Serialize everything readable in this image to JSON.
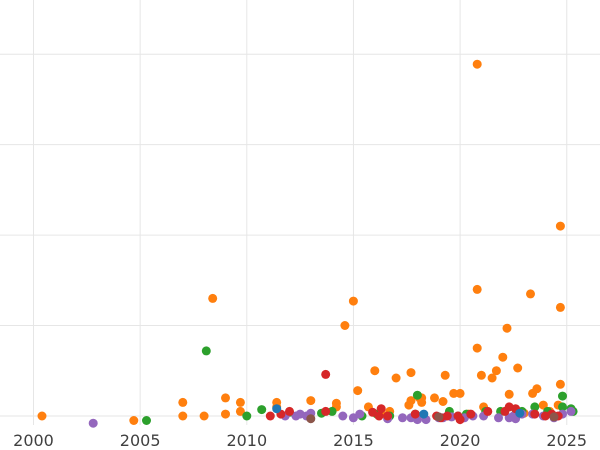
{
  "chart_data": {
    "type": "scatter",
    "title": "",
    "xlabel": "",
    "ylabel": "",
    "xlim": [
      2000,
      2026
    ],
    "ylim": [
      0,
      4.7
    ],
    "xticks": [
      2000,
      2005,
      2010,
      2015,
      2020,
      2025
    ],
    "xtick_labels": [
      "2000",
      "2005",
      "2010",
      "2015",
      "2020",
      "2025"
    ],
    "yticks": [
      0.1,
      1.1,
      2.1,
      3.1,
      4.1
    ],
    "grid": true,
    "legend": "none",
    "series": [
      {
        "color": "#ff7f0e",
        "x": [
          2000.4,
          2004.7,
          2007.0,
          2007.0,
          2008.0,
          2008.4,
          2009.0,
          2009.0,
          2009.7,
          2009.7,
          2011.4,
          2011.4,
          2013.0,
          2014.2,
          2014.2,
          2014.6,
          2015.0,
          2015.2,
          2015.7,
          2016.0,
          2016.3,
          2016.7,
          2017.0,
          2017.6,
          2017.7,
          2017.7,
          2018.1,
          2018.2,
          2018.2,
          2018.8,
          2019.2,
          2019.3,
          2019.7,
          2020.0,
          2020.4,
          2020.8,
          2020.8,
          2020.8,
          2021.0,
          2021.1,
          2021.5,
          2021.7,
          2022.0,
          2022.2,
          2022.3,
          2022.7,
          2023.0,
          2023.3,
          2023.4,
          2023.6,
          2023.9,
          2024.2,
          2024.6,
          2024.7,
          2024.7,
          2024.7
        ],
        "y": [
          0.1,
          0.05,
          0.25,
          0.1,
          0.1,
          1.4,
          0.3,
          0.12,
          0.15,
          0.25,
          0.25,
          0.2,
          0.27,
          0.2,
          0.24,
          1.1,
          1.37,
          0.38,
          0.2,
          0.6,
          0.12,
          0.15,
          0.52,
          0.22,
          0.27,
          0.58,
          0.3,
          0.25,
          0.3,
          0.3,
          0.26,
          0.55,
          0.35,
          0.35,
          0.12,
          3.99,
          0.85,
          1.5,
          0.55,
          0.2,
          0.52,
          0.6,
          0.75,
          1.07,
          0.34,
          0.63,
          0.13,
          1.45,
          0.35,
          0.4,
          0.22,
          0.15,
          0.22,
          0.45,
          1.3,
          2.2
        ]
      },
      {
        "color": "#2ca02c",
        "x": [
          2005.3,
          2008.1,
          2010.0,
          2010.7,
          2012.0,
          2013.5,
          2014.0,
          2015.4,
          2016.1,
          2016.7,
          2017.9,
          2018.0,
          2019.5,
          2019.9,
          2020.3,
          2021.2,
          2021.9,
          2022.6,
          2022.9,
          2023.5,
          2024.1,
          2024.8,
          2024.8,
          2025.2,
          2025.3
        ],
        "y": [
          0.05,
          0.82,
          0.1,
          0.17,
          0.14,
          0.13,
          0.15,
          0.1,
          0.12,
          0.1,
          0.12,
          0.33,
          0.15,
          0.1,
          0.12,
          0.15,
          0.15,
          0.12,
          0.15,
          0.2,
          0.15,
          0.32,
          0.2,
          0.18,
          0.15
        ]
      },
      {
        "color": "#9467bd",
        "x": [
          2002.8,
          2011.8,
          2012.3,
          2012.5,
          2012.8,
          2013.0,
          2014.5,
          2015.0,
          2015.3,
          2016.6,
          2017.3,
          2017.7,
          2018.0,
          2018.4,
          2019.0,
          2019.2,
          2019.6,
          2020.2,
          2020.6,
          2021.1,
          2021.8,
          2022.3,
          2022.5,
          2022.6,
          2022.9,
          2023.4,
          2023.9,
          2024.4,
          2024.8,
          2025.2
        ],
        "y": [
          0.02,
          0.1,
          0.1,
          0.12,
          0.1,
          0.13,
          0.1,
          0.08,
          0.12,
          0.07,
          0.08,
          0.08,
          0.06,
          0.06,
          0.08,
          0.08,
          0.09,
          0.08,
          0.1,
          0.1,
          0.08,
          0.08,
          0.1,
          0.07,
          0.12,
          0.12,
          0.1,
          0.08,
          0.12,
          0.15
        ]
      },
      {
        "color": "#d62728",
        "x": [
          2011.1,
          2011.6,
          2012.0,
          2013.7,
          2013.7,
          2015.9,
          2016.2,
          2016.3,
          2016.6,
          2017.9,
          2018.9,
          2019.1,
          2019.4,
          2019.9,
          2020.0,
          2020.5,
          2021.3,
          2022.1,
          2022.3,
          2022.6,
          2023.5,
          2024.0,
          2024.3,
          2024.6
        ],
        "y": [
          0.1,
          0.12,
          0.15,
          0.15,
          0.56,
          0.14,
          0.1,
          0.18,
          0.1,
          0.12,
          0.1,
          0.08,
          0.1,
          0.1,
          0.06,
          0.12,
          0.15,
          0.15,
          0.2,
          0.18,
          0.12,
          0.1,
          0.12,
          0.1
        ]
      },
      {
        "color": "#1f77b4",
        "x": [
          2011.4,
          2018.3,
          2022.8
        ],
        "y": [
          0.18,
          0.12,
          0.13
        ]
      },
      {
        "color": "#8c564b",
        "x": [
          2013.0,
          2019.0,
          2024.4
        ],
        "y": [
          0.07,
          0.09,
          0.09
        ]
      }
    ]
  }
}
